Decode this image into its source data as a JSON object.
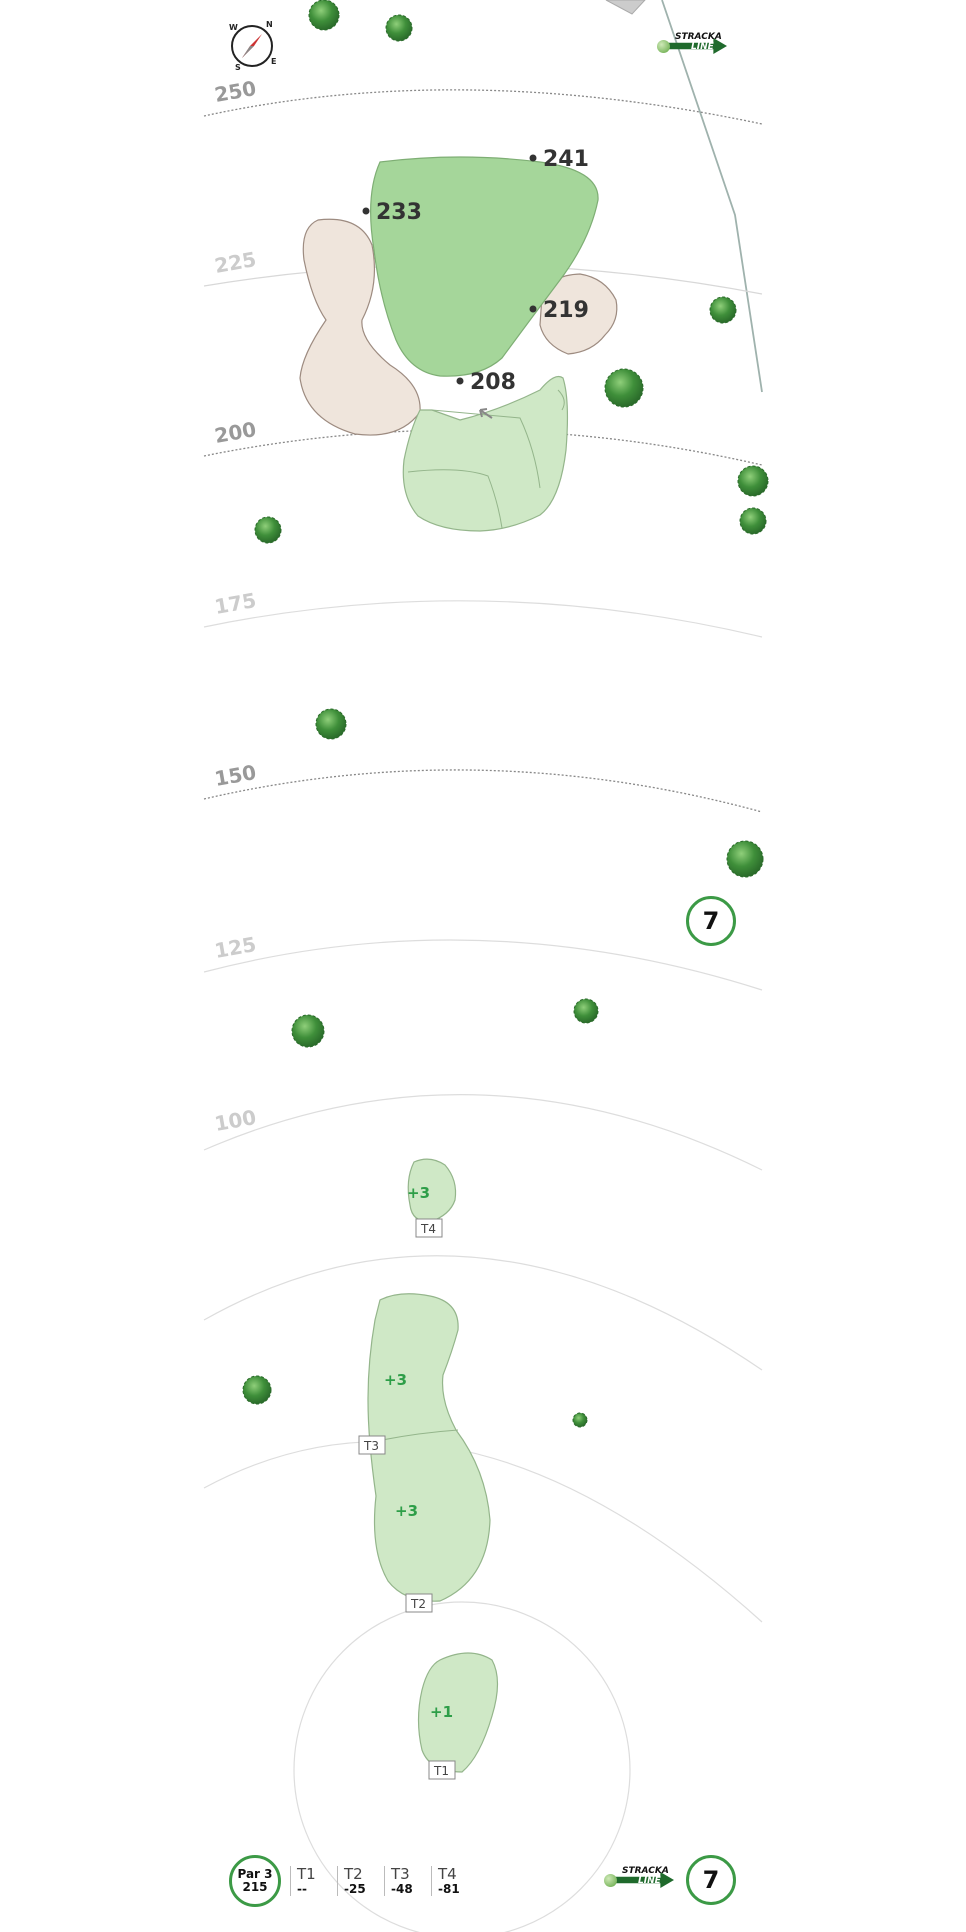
{
  "compass": {
    "labels": [
      "N",
      "E",
      "S",
      "W"
    ]
  },
  "distance_arcs": [
    "250",
    "225",
    "200",
    "175",
    "150",
    "125",
    "100"
  ],
  "green_yardages": [
    "241",
    "233",
    "219",
    "208"
  ],
  "tee_labels": [
    "T4",
    "T3",
    "T2",
    "T1"
  ],
  "tee_offsets": [
    "+3",
    "+3",
    "+3",
    "+1"
  ],
  "hole_number": "7",
  "logo": {
    "line1": "STRACKA",
    "line2": "LINE"
  },
  "footer": {
    "par_label": "Par 3",
    "yardage": "215",
    "tees": [
      {
        "name": "T1",
        "value": "--"
      },
      {
        "name": "T2",
        "value": "-25"
      },
      {
        "name": "T3",
        "value": "-48"
      },
      {
        "name": "T4",
        "value": "-81"
      }
    ]
  },
  "colors": {
    "green": "#a5d69a",
    "approach": "#cfe8c6",
    "bunker": "#efe5dc",
    "tree": "#3a8a3c",
    "accent": "#3c9a46"
  },
  "icons": [
    "compass-icon",
    "tree-icon",
    "stracka-line-logo",
    "pin-arrow-icon"
  ]
}
